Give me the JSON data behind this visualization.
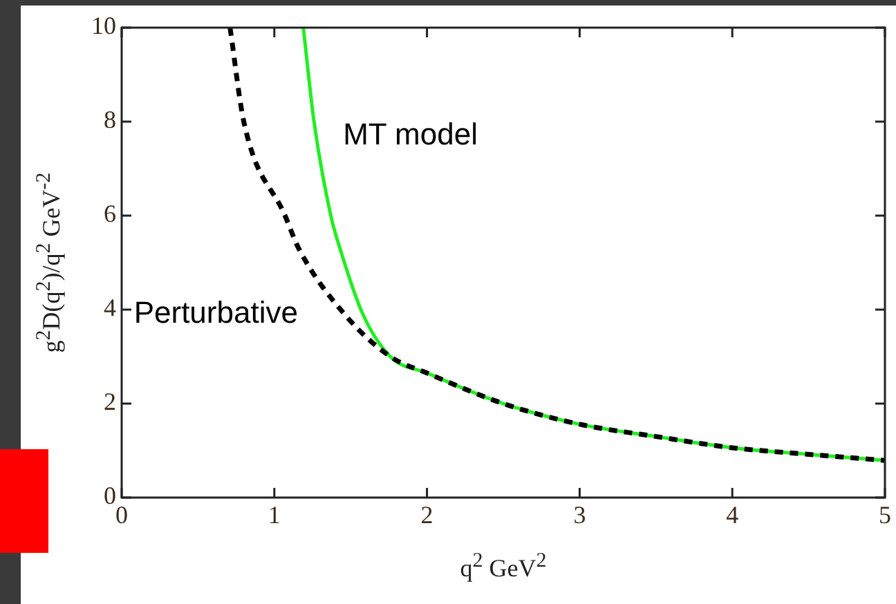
{
  "chart_data": {
    "type": "line",
    "xlabel": "q$^{2}$ GeV$^{2}$",
    "ylabel": "g$^{2}$D(q$^{2}$)/q$^{2}$ GeV$^{-2}$",
    "xlim": [
      0,
      5
    ],
    "ylim": [
      0,
      10
    ],
    "xticks": [
      0,
      1,
      2,
      3,
      4,
      5
    ],
    "yticks": [
      0,
      2,
      4,
      6,
      8,
      10
    ],
    "grid": false,
    "legend": false,
    "marker": "none",
    "series": [
      {
        "name": "MT model",
        "color": "#22ee22",
        "line_style": "solid",
        "x": [
          1.19,
          1.26,
          1.37,
          1.43,
          1.58,
          1.76,
          2,
          2.5,
          3,
          3.5,
          4,
          4.5,
          5
        ],
        "values": [
          10,
          8,
          6,
          5.3,
          3.9,
          3,
          2.65,
          2,
          1.56,
          1.3,
          1.06,
          0.92,
          0.79
        ]
      },
      {
        "name": "Perturbative",
        "color": "#000000",
        "line_style": "dashed",
        "x": [
          0.71,
          0.8,
          1.07,
          1.16,
          1.46,
          1.76,
          2,
          2.5,
          3,
          3.5,
          4,
          4.5,
          5
        ],
        "values": [
          10,
          8,
          6,
          5.3,
          3.9,
          3,
          2.65,
          2,
          1.56,
          1.3,
          1.06,
          0.92,
          0.79
        ]
      }
    ]
  }
}
